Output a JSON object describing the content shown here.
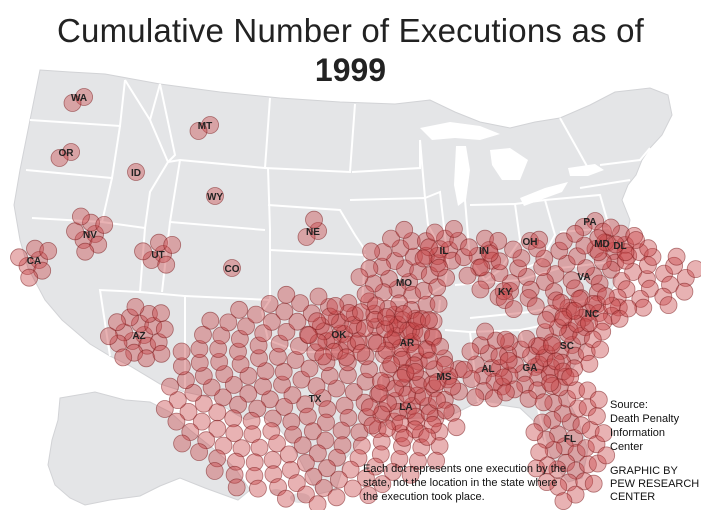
{
  "title_line1": "Cumulative Number of Executions as of",
  "title_line2": "1999",
  "note": "Each dot represents one execution by the state, not the location in the state where the execution took place.",
  "source_lines": [
    "Source:",
    "Death Penalty",
    "Information",
    "Center"
  ],
  "credit_lines": [
    "GRAPHIC BY",
    "PEW RESEARCH",
    "CENTER"
  ],
  "colors": {
    "land": "#e4e5e7",
    "border": "#ffffff",
    "dot_fill": "#c9484a",
    "dot_stroke": "#7a1a1c"
  },
  "states": [
    {
      "abbr": "WA",
      "n": 2
    },
    {
      "abbr": "OR",
      "n": 2
    },
    {
      "abbr": "CA",
      "n": 7
    },
    {
      "abbr": "NV",
      "n": 8
    },
    {
      "abbr": "ID",
      "n": 1
    },
    {
      "abbr": "MT",
      "n": 2
    },
    {
      "abbr": "WY",
      "n": 1
    },
    {
      "abbr": "UT",
      "n": 6
    },
    {
      "abbr": "CO",
      "n": 1
    },
    {
      "abbr": "AZ",
      "n": 19
    },
    {
      "abbr": "NE",
      "n": 3
    },
    {
      "abbr": "TX",
      "n": 199
    },
    {
      "abbr": "OK",
      "n": 19
    },
    {
      "abbr": "MO",
      "n": 41
    },
    {
      "abbr": "AR",
      "n": 22
    },
    {
      "abbr": "LA",
      "n": 25
    },
    {
      "abbr": "IL",
      "n": 11
    },
    {
      "abbr": "IN",
      "n": 7
    },
    {
      "abbr": "KY",
      "n": 2
    },
    {
      "abbr": "OH",
      "n": 1
    },
    {
      "abbr": "PA",
      "n": 2
    },
    {
      "abbr": "MD",
      "n": 3
    },
    {
      "abbr": "DL",
      "n": 9
    },
    {
      "abbr": "VA",
      "n": 73
    },
    {
      "abbr": "NC",
      "n": 15
    },
    {
      "abbr": "SC",
      "n": 24
    },
    {
      "abbr": "GA",
      "n": 23
    },
    {
      "abbr": "AL",
      "n": 19
    },
    {
      "abbr": "MS",
      "n": 4
    },
    {
      "abbr": "FL",
      "n": 44
    }
  ]
}
